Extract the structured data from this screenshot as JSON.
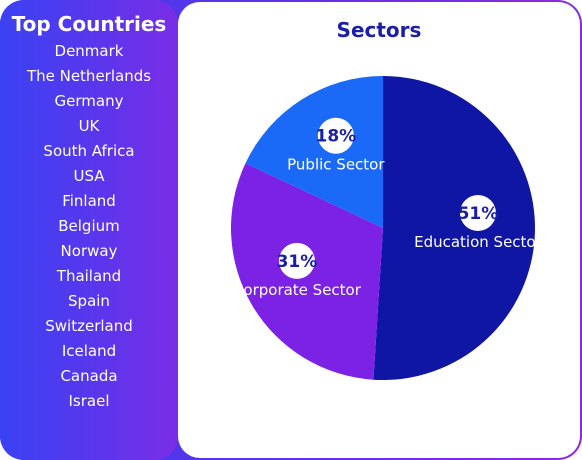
{
  "sidebar": {
    "title": "Top Countries",
    "countries": [
      "Denmark",
      "The Netherlands",
      "Germany",
      "UK",
      "South Africa",
      "USA",
      "Finland",
      "Belgium",
      "Norway",
      "Thailand",
      "Spain",
      "Switzerland",
      "Iceland",
      "Canada",
      "Israel"
    ]
  },
  "colors": {
    "education": "#0f16a3",
    "corporate": "#7b22e4",
    "public": "#1a6af7",
    "title": "#1b1fa6"
  },
  "chart_data": {
    "type": "pie",
    "title": "Sectors",
    "slices": [
      {
        "label": "Education Sector",
        "value": 51,
        "display": "51%"
      },
      {
        "label": "Corporate Sector",
        "value": 31,
        "display": "31%"
      },
      {
        "label": "Public Sector",
        "value": 18,
        "display": "18%"
      }
    ]
  }
}
